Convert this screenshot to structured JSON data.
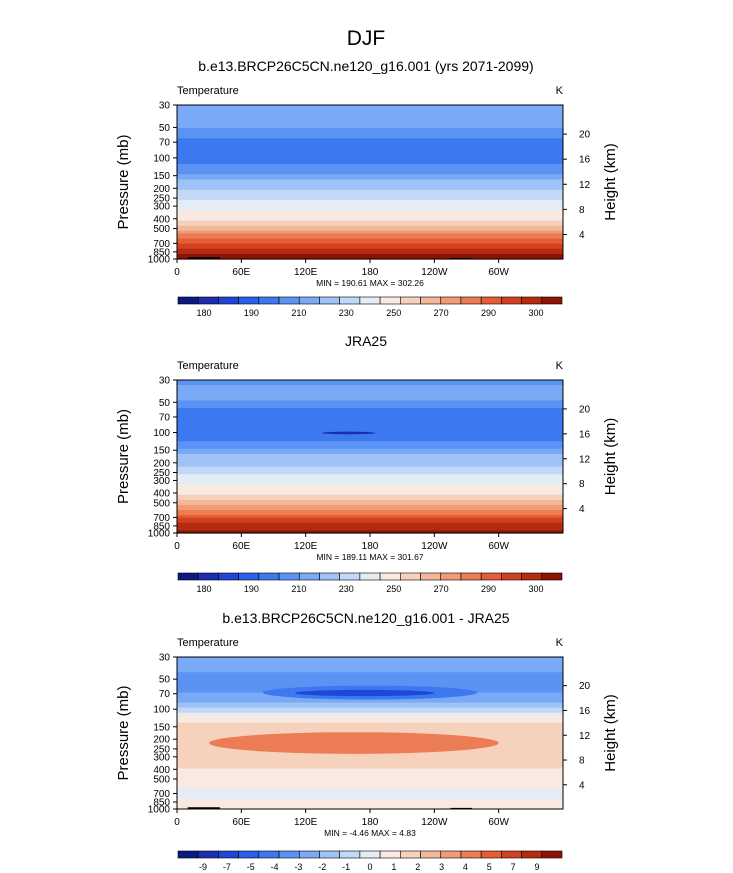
{
  "figure_title": "DJF",
  "colors": {
    "temp": [
      "#0b1a82",
      "#1a2fb0",
      "#1f46d6",
      "#2a5ee8",
      "#3c78ef",
      "#5b93f4",
      "#7aaaf5",
      "#9fc2f7",
      "#c3d8f7",
      "#e4ecf6",
      "#f8eae0",
      "#f6d2bd",
      "#f3b79a",
      "#f09a76",
      "#ec7c54",
      "#e45d36",
      "#d3401f",
      "#b52b10",
      "#8c1404"
    ],
    "diff": [
      "#0b1a82",
      "#1a2fb0",
      "#1f46d6",
      "#2a5ee8",
      "#3c78ef",
      "#5b93f4",
      "#7aaaf5",
      "#9fc2f7",
      "#c3d8f7",
      "#e4ecf6",
      "#f8eae0",
      "#f6d2bd",
      "#f3b79a",
      "#f09a76",
      "#ec7c54",
      "#e45d36",
      "#d3401f",
      "#b52b10",
      "#8c1404"
    ],
    "topography": "#000000"
  },
  "chart_data": [
    {
      "type": "heatmap",
      "title": "b.e13.BRCP26C5CN.ne120_g16.001 (yrs 2071-2099)",
      "left_label": "Temperature",
      "right_label": "K",
      "ylabel": "Pressure (mb)",
      "y2label": "Height (km)",
      "xticks": [
        "0",
        "60E",
        "120E",
        "180",
        "120W",
        "60W"
      ],
      "xtick_lon": [
        0,
        60,
        120,
        180,
        240,
        300
      ],
      "xlim": [
        0,
        360
      ],
      "yticks": [
        "30",
        "50",
        "70",
        "100",
        "150",
        "200",
        "250",
        "300",
        "400",
        "500",
        "700",
        "850",
        "1000"
      ],
      "ytick_p": [
        30,
        50,
        70,
        100,
        150,
        200,
        250,
        300,
        400,
        500,
        700,
        850,
        1000
      ],
      "ylim": [
        30,
        1000
      ],
      "yscale": "log",
      "y2ticks": [
        "20",
        "16",
        "12",
        "8",
        "4"
      ],
      "y2tick_km": [
        20,
        16,
        12,
        8,
        4
      ],
      "stats": "MIN = 190.61  MAX = 302.26",
      "colorbar_labels": [
        "180",
        "190",
        "210",
        "230",
        "250",
        "270",
        "290",
        "300"
      ],
      "colorbar_label_slot": [
        1,
        3,
        5,
        7,
        9,
        11,
        13,
        15
      ],
      "levels_by_pressure": [
        [
          30,
          205
        ],
        [
          45,
          208
        ],
        [
          55,
          203
        ],
        [
          70,
          198
        ],
        [
          100,
          197
        ],
        [
          140,
          204
        ],
        [
          170,
          212
        ],
        [
          200,
          218
        ],
        [
          240,
          226
        ],
        [
          270,
          232
        ],
        [
          320,
          240
        ],
        [
          370,
          246
        ],
        [
          430,
          252
        ],
        [
          490,
          258
        ],
        [
          560,
          264
        ],
        [
          640,
          270
        ],
        [
          720,
          276
        ],
        [
          800,
          282
        ],
        [
          880,
          288
        ],
        [
          960,
          293
        ],
        [
          1000,
          296
        ]
      ],
      "features": [
        {
          "lon": [
            10,
            40
          ],
          "p_top": 960,
          "kind": "topography"
        },
        {
          "lon": [
            255,
            275
          ],
          "p_top": 975,
          "kind": "topography"
        }
      ]
    },
    {
      "type": "heatmap",
      "title": "JRA25",
      "left_label": "Temperature",
      "right_label": "K",
      "ylabel": "Pressure (mb)",
      "y2label": "Height (km)",
      "xticks": [
        "0",
        "60E",
        "120E",
        "180",
        "120W",
        "60W"
      ],
      "xtick_lon": [
        0,
        60,
        120,
        180,
        240,
        300
      ],
      "xlim": [
        0,
        360
      ],
      "yticks": [
        "30",
        "50",
        "70",
        "100",
        "150",
        "200",
        "250",
        "300",
        "400",
        "500",
        "700",
        "850",
        "1000"
      ],
      "ytick_p": [
        30,
        50,
        70,
        100,
        150,
        200,
        250,
        300,
        400,
        500,
        700,
        850,
        1000
      ],
      "ylim": [
        30,
        1000
      ],
      "yscale": "log",
      "y2ticks": [
        "20",
        "16",
        "12",
        "8",
        "4"
      ],
      "y2tick_km": [
        20,
        16,
        12,
        8,
        4
      ],
      "stats": "MIN = 189.11  MAX = 301.67",
      "colorbar_labels": [
        "180",
        "190",
        "210",
        "230",
        "250",
        "270",
        "290",
        "300"
      ],
      "colorbar_label_slot": [
        1,
        3,
        5,
        7,
        9,
        11,
        13,
        15
      ],
      "levels_by_pressure": [
        [
          30,
          204
        ],
        [
          45,
          207
        ],
        [
          55,
          201
        ],
        [
          70,
          196
        ],
        [
          100,
          195
        ],
        [
          140,
          203
        ],
        [
          170,
          211
        ],
        [
          200,
          217
        ],
        [
          240,
          225
        ],
        [
          270,
          231
        ],
        [
          320,
          239
        ],
        [
          370,
          245
        ],
        [
          430,
          251
        ],
        [
          490,
          257
        ],
        [
          560,
          263
        ],
        [
          640,
          269
        ],
        [
          720,
          275
        ],
        [
          800,
          281
        ],
        [
          880,
          287
        ],
        [
          960,
          292
        ],
        [
          1000,
          295
        ]
      ],
      "features": [
        {
          "lon": [
            135,
            185
          ],
          "p_top": 98,
          "p_bot": 104,
          "kind": "cold-core"
        }
      ]
    },
    {
      "type": "heatmap",
      "title": "b.e13.BRCP26C5CN.ne120_g16.001 - JRA25",
      "left_label": "Temperature",
      "right_label": "K",
      "ylabel": "Pressure (mb)",
      "y2label": "Height (km)",
      "xticks": [
        "0",
        "60E",
        "120E",
        "180",
        "120W",
        "60W"
      ],
      "xtick_lon": [
        0,
        60,
        120,
        180,
        240,
        300
      ],
      "xlim": [
        0,
        360
      ],
      "yticks": [
        "30",
        "50",
        "70",
        "100",
        "150",
        "200",
        "250",
        "300",
        "400",
        "500",
        "700",
        "850",
        "1000"
      ],
      "ytick_p": [
        30,
        50,
        70,
        100,
        150,
        200,
        250,
        300,
        400,
        500,
        700,
        850,
        1000
      ],
      "ylim": [
        30,
        1000
      ],
      "yscale": "log",
      "y2ticks": [
        "20",
        "16",
        "12",
        "8",
        "4"
      ],
      "y2tick_km": [
        20,
        16,
        12,
        8,
        4
      ],
      "stats": "MIN = -4.46  MAX =  4.83",
      "colorbar_labels": [
        "-9",
        "-7",
        "-5",
        "-4",
        "-3",
        "-2",
        "-1",
        "0",
        "1",
        "2",
        "3",
        "4",
        "5",
        "7",
        "9"
      ],
      "colorbar_label_slot": [
        1,
        2,
        3,
        4,
        5,
        6,
        7,
        8,
        9,
        10,
        11,
        12,
        13,
        14,
        15
      ],
      "levels_by_pressure": [
        [
          30,
          -1.2
        ],
        [
          45,
          -2.1
        ],
        [
          60,
          -2.6
        ],
        [
          75,
          -1.6
        ],
        [
          95,
          -0.6
        ],
        [
          120,
          0.6
        ],
        [
          150,
          1.4
        ],
        [
          200,
          1.7
        ],
        [
          260,
          1.4
        ],
        [
          320,
          1.2
        ],
        [
          400,
          1.0
        ],
        [
          500,
          0.8
        ],
        [
          700,
          0.4
        ],
        [
          850,
          0.6
        ],
        [
          1000,
          0.8
        ]
      ],
      "features": [
        {
          "lon": [
            80,
            280
          ],
          "p_top": 58,
          "p_bot": 80,
          "kind": "negative-blob"
        },
        {
          "lon": [
            110,
            240
          ],
          "p_top": 64,
          "p_bot": 74,
          "kind": "negative-core"
        },
        {
          "lon": [
            30,
            300
          ],
          "p_top": 170,
          "p_bot": 280,
          "kind": "positive-blob"
        },
        {
          "lon": [
            10,
            40
          ],
          "p_top": 960,
          "kind": "topography"
        },
        {
          "lon": [
            255,
            275
          ],
          "p_top": 975,
          "kind": "topography"
        }
      ]
    }
  ]
}
